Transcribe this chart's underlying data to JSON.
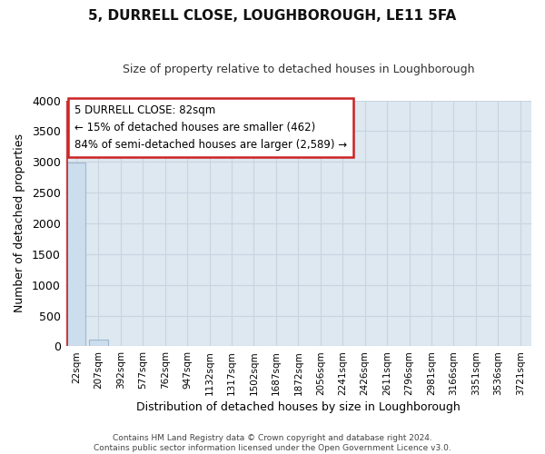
{
  "title": "5, DURRELL CLOSE, LOUGHBOROUGH, LE11 5FA",
  "subtitle": "Size of property relative to detached houses in Loughborough",
  "xlabel": "Distribution of detached houses by size in Loughborough",
  "ylabel": "Number of detached properties",
  "bar_labels": [
    "22sqm",
    "207sqm",
    "392sqm",
    "577sqm",
    "762sqm",
    "947sqm",
    "1132sqm",
    "1317sqm",
    "1502sqm",
    "1687sqm",
    "1872sqm",
    "2056sqm",
    "2241sqm",
    "2426sqm",
    "2611sqm",
    "2796sqm",
    "2981sqm",
    "3166sqm",
    "3351sqm",
    "3536sqm",
    "3721sqm"
  ],
  "bar_values": [
    2990,
    115,
    0,
    0,
    0,
    0,
    0,
    0,
    0,
    0,
    0,
    0,
    0,
    0,
    0,
    0,
    0,
    0,
    0,
    0,
    0
  ],
  "bar_color": "#ccdded",
  "bar_edge_color": "#a0b8cc",
  "first_bar_left_edge": "#cc2222",
  "ylim": [
    0,
    4000
  ],
  "yticks": [
    0,
    500,
    1000,
    1500,
    2000,
    2500,
    3000,
    3500,
    4000
  ],
  "annotation_text": "5 DURRELL CLOSE: 82sqm\n← 15% of detached houses are smaller (462)\n84% of semi-detached houses are larger (2,589) →",
  "annotation_box_color": "#ffffff",
  "annotation_box_edge": "#cc2222",
  "grid_color": "#c8d4e0",
  "bg_color": "#dde8f0",
  "plot_bg_color": "#dde8f0",
  "footnote1": "Contains HM Land Registry data © Crown copyright and database right 2024.",
  "footnote2": "Contains public sector information licensed under the Open Government Licence v3.0."
}
